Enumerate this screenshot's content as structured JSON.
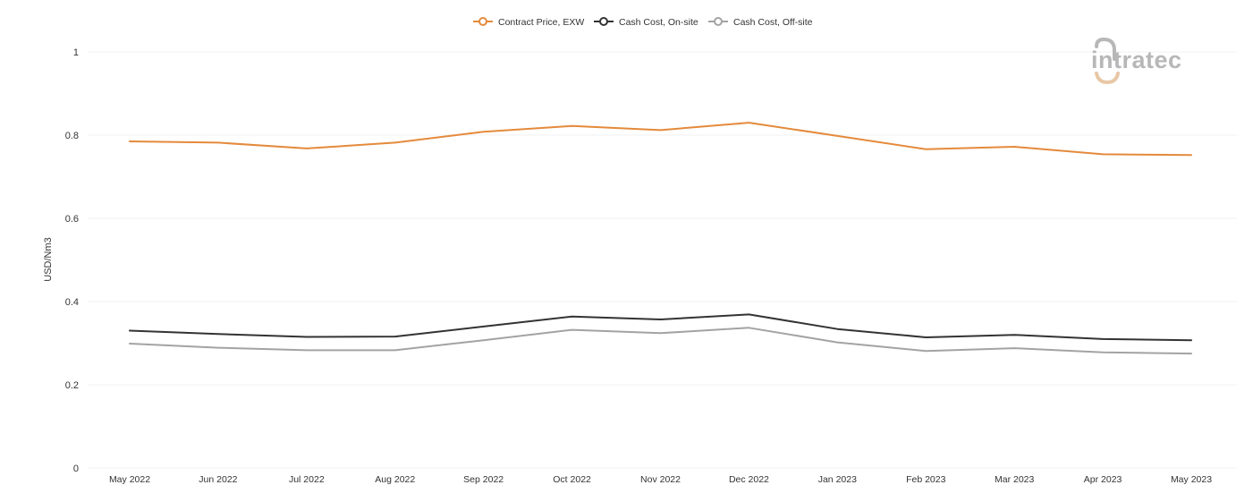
{
  "chart_data": {
    "type": "line",
    "categories": [
      "May 2022",
      "Jun 2022",
      "Jul 2022",
      "Aug 2022",
      "Sep 2022",
      "Oct 2022",
      "Nov 2022",
      "Dec 2022",
      "Jan 2023",
      "Feb 2023",
      "Mar 2023",
      "Apr 2023",
      "May 2023"
    ],
    "series": [
      {
        "name": "Contract Price, EXW",
        "color": "#e48a3c",
        "values": [
          0.785,
          0.782,
          0.768,
          0.782,
          0.808,
          0.822,
          0.812,
          0.83,
          0.798,
          0.766,
          0.772,
          0.754,
          0.752
        ]
      },
      {
        "name": "Cash Cost, On-site",
        "color": "#333333",
        "values": [
          0.33,
          0.322,
          0.315,
          0.316,
          0.34,
          0.364,
          0.357,
          0.369,
          0.334,
          0.314,
          0.32,
          0.31,
          0.307
        ]
      },
      {
        "name": "Cash Cost, Off-site",
        "color": "#a3a3a3",
        "values": [
          0.299,
          0.289,
          0.283,
          0.283,
          0.307,
          0.332,
          0.324,
          0.337,
          0.302,
          0.281,
          0.288,
          0.278,
          0.275
        ]
      }
    ],
    "ylabel": "USD/Nm3",
    "xlabel": "",
    "ylim": [
      0,
      1
    ],
    "yticks": [
      0,
      0.2,
      0.4,
      0.6,
      0.8,
      1
    ],
    "ytick_labels": [
      "0",
      "0.2",
      "0.4",
      "0.6",
      "0.8",
      "1"
    ],
    "grid": true,
    "legend_position": "top-center"
  },
  "logo": {
    "text": "intratec",
    "colors": {
      "text": "#b7b7b7",
      "accent": "#e8c7a5"
    }
  }
}
